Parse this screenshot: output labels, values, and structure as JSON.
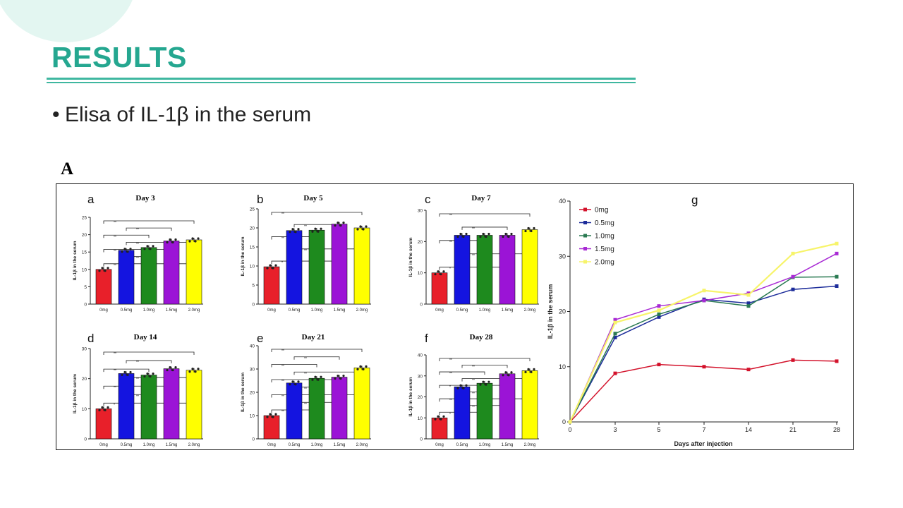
{
  "slide": {
    "title": "RESULTS",
    "bullet": "Elisa of IL-1β in the serum",
    "figure_label": "A"
  },
  "colors": {
    "0mg": "#e8202a",
    "0.5mg": "#1414e0",
    "1.0mg": "#1e8a1e",
    "1.5mg": "#9b14d6",
    "2.0mg": "#ffff00",
    "line_0mg": "#d3122b",
    "line_0.5mg": "#1c2c9a",
    "line_1.0mg": "#2a7a52",
    "line_1.5mg": "#a82ad4",
    "line_2.0mg": "#f7f46a",
    "accent": "#25a790"
  },
  "chart_data": [
    {
      "type": "bar",
      "panel": "a",
      "title": "Day 3",
      "ylabel": "IL-1β in the serum",
      "ylim": [
        0,
        25
      ],
      "yticks": [
        0,
        5,
        10,
        15,
        20,
        25
      ],
      "categories": [
        "0mg",
        "0.5mg",
        "1.0mg",
        "1.5mg",
        "2.0mg"
      ],
      "values": [
        10,
        15.5,
        16.3,
        18.2,
        18.5
      ],
      "significance": [
        "**",
        "**",
        "**",
        "**",
        "**",
        "**",
        "**"
      ]
    },
    {
      "type": "bar",
      "panel": "b",
      "title": "Day 5",
      "ylabel": "IL-1β in the serum",
      "ylim": [
        0,
        25
      ],
      "yticks": [
        0,
        5,
        10,
        15,
        20,
        25
      ],
      "categories": [
        "0mg",
        "0.5mg",
        "1.0mg",
        "1.5mg",
        "2.0mg"
      ],
      "values": [
        9.8,
        19.3,
        19.4,
        21,
        20
      ],
      "significance": [
        "**",
        "**",
        "**",
        "**",
        "*"
      ]
    },
    {
      "type": "bar",
      "panel": "c",
      "title": "Day 7",
      "ylabel": "IL-1β in the serum",
      "ylim": [
        0,
        30
      ],
      "yticks": [
        0,
        10,
        20,
        30
      ],
      "categories": [
        "0mg",
        "0.5mg",
        "1.0mg",
        "1.5mg",
        "2.0mg"
      ],
      "values": [
        10,
        22,
        22,
        22,
        23.8
      ],
      "significance": [
        "**",
        "**",
        "**",
        "**",
        "*"
      ]
    },
    {
      "type": "bar",
      "panel": "d",
      "title": "Day 14",
      "ylabel": "IL-1β in the serum",
      "ylim": [
        0,
        30
      ],
      "yticks": [
        0,
        10,
        20,
        30
      ],
      "categories": [
        "0mg",
        "0.5mg",
        "1.0mg",
        "1.5mg",
        "2.0mg"
      ],
      "values": [
        10,
        21.7,
        21.2,
        23.3,
        22.8
      ],
      "significance": [
        "**",
        "**",
        "**",
        "**",
        "**",
        "**",
        "*"
      ]
    },
    {
      "type": "bar",
      "panel": "e",
      "title": "Day 21",
      "ylabel": "IL-1β in the serum",
      "ylim": [
        0,
        40
      ],
      "yticks": [
        0,
        10,
        20,
        30,
        40
      ],
      "categories": [
        "0mg",
        "0.5mg",
        "1.0mg",
        "1.5mg",
        "2.0mg"
      ],
      "values": [
        10,
        24,
        26,
        26.5,
        30.5
      ],
      "significance": [
        "**",
        "**",
        "**",
        "**",
        "**",
        "**",
        "**",
        "**",
        "**"
      ]
    },
    {
      "type": "bar",
      "panel": "f",
      "title": "Day 28",
      "ylabel": "IL-1β in the serum",
      "ylim": [
        0,
        40
      ],
      "yticks": [
        0,
        10,
        20,
        30,
        40
      ],
      "categories": [
        "0mg",
        "0.5mg",
        "1.0mg",
        "1.5mg",
        "2.0mg"
      ],
      "values": [
        10,
        24.8,
        26.5,
        31,
        32.5
      ],
      "significance": [
        "**",
        "**",
        "**",
        "**",
        "*",
        "**",
        "**",
        "**",
        "*"
      ]
    },
    {
      "type": "line",
      "panel": "g",
      "title": "g",
      "xlabel": "Days after injection",
      "ylabel": "IL-1β in the serum",
      "x": [
        "0",
        "3",
        "5",
        "7",
        "14",
        "21",
        "28"
      ],
      "ylim": [
        0,
        40
      ],
      "yticks": [
        0,
        10,
        20,
        30,
        40
      ],
      "legend_position": "top-left",
      "series": [
        {
          "name": "0mg",
          "values": [
            0,
            8.8,
            10.4,
            10,
            9.5,
            11.2,
            11
          ]
        },
        {
          "name": "0.5mg",
          "values": [
            0,
            15.3,
            19,
            22.2,
            21.5,
            24,
            24.6
          ]
        },
        {
          "name": "1.0mg",
          "values": [
            0,
            16,
            19.5,
            22,
            21,
            26.2,
            26.3
          ]
        },
        {
          "name": "1.5mg",
          "values": [
            0,
            18.5,
            21,
            22,
            23.3,
            26.3,
            30.5
          ]
        },
        {
          "name": "2.0mg",
          "values": [
            0,
            18,
            20.2,
            23.8,
            23,
            30.5,
            32.3
          ]
        }
      ]
    }
  ]
}
